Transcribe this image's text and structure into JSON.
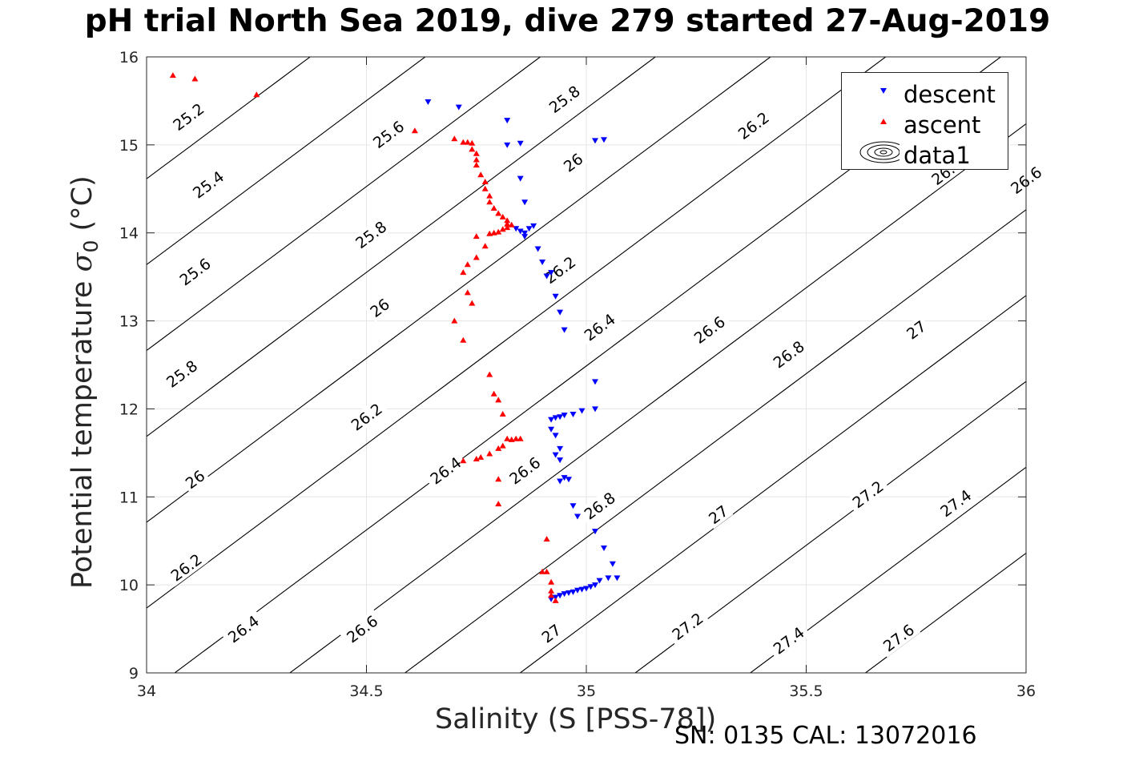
{
  "title": "pH trial North Sea 2019, dive 279 started 27-Aug-2019",
  "footer": "SN: 0135  CAL: 13072016",
  "colors": {
    "descent": "#0000ff",
    "ascent": "#ff0000",
    "contour": "#000000",
    "grid": "#e5e5e5"
  },
  "chart_data": {
    "type": "scatter",
    "xlabel": "Salinity (S [PSS-78])",
    "ylabel_main": "Potential temperature ",
    "ylabel_sub": "0",
    "ylabel_tail": " (°C)",
    "xlim": [
      34,
      36
    ],
    "ylim": [
      9,
      16
    ],
    "xticks": [
      "34",
      "34.5",
      "35",
      "35.5",
      "36"
    ],
    "yticks": [
      "9",
      "10",
      "11",
      "12",
      "13",
      "14",
      "15",
      "16"
    ],
    "grid": true,
    "legend_position": "top-right",
    "legend": [
      {
        "label": "descent",
        "marker": "triangle-down"
      },
      {
        "label": "ascent",
        "marker": "triangle-up"
      },
      {
        "label": "data1",
        "marker": "contour"
      }
    ],
    "contour_levels": [
      "25.2",
      "25.4",
      "25.6",
      "25.8",
      "26",
      "26.2",
      "26.4",
      "26.6",
      "26.8",
      "27",
      "27.2",
      "27.4",
      "27.6"
    ],
    "contour_labels": [
      {
        "text": "25.2",
        "x": 34.095,
        "y": 15.32
      },
      {
        "text": "25.6",
        "x": 34.55,
        "y": 15.12
      },
      {
        "text": "25.8",
        "x": 34.95,
        "y": 15.52
      },
      {
        "text": "25.4",
        "x": 34.14,
        "y": 14.55
      },
      {
        "text": "25.8",
        "x": 34.51,
        "y": 13.98
      },
      {
        "text": "26",
        "x": 34.97,
        "y": 14.8
      },
      {
        "text": "26.2",
        "x": 35.38,
        "y": 15.22
      },
      {
        "text": "26.4",
        "x": 35.82,
        "y": 14.7
      },
      {
        "text": "26.6",
        "x": 36.0,
        "y": 14.6
      },
      {
        "text": "26.8",
        "x": 36.14,
        "y": 14.33
      },
      {
        "text": "25.6",
        "x": 34.11,
        "y": 13.56
      },
      {
        "text": "26",
        "x": 34.53,
        "y": 13.15
      },
      {
        "text": "26.2",
        "x": 34.94,
        "y": 13.58
      },
      {
        "text": "26.4",
        "x": 35.03,
        "y": 12.93
      },
      {
        "text": "26.6",
        "x": 35.28,
        "y": 12.9
      },
      {
        "text": "26.8",
        "x": 35.46,
        "y": 12.62
      },
      {
        "text": "27",
        "x": 35.75,
        "y": 12.9
      },
      {
        "text": "25.8",
        "x": 34.08,
        "y": 12.4
      },
      {
        "text": "26.2",
        "x": 34.5,
        "y": 11.91
      },
      {
        "text": "26.4",
        "x": 34.68,
        "y": 11.3
      },
      {
        "text": "26.6",
        "x": 34.86,
        "y": 11.3
      },
      {
        "text": "26.8",
        "x": 35.03,
        "y": 10.9
      },
      {
        "text": "27.2",
        "x": 35.64,
        "y": 11.03
      },
      {
        "text": "27.4",
        "x": 35.84,
        "y": 10.93
      },
      {
        "text": "26",
        "x": 34.11,
        "y": 11.2
      },
      {
        "text": "26.2",
        "x": 34.09,
        "y": 10.2
      },
      {
        "text": "27",
        "x": 35.3,
        "y": 10.8
      },
      {
        "text": "26.4",
        "x": 34.22,
        "y": 9.5
      },
      {
        "text": "26.6",
        "x": 34.49,
        "y": 9.5
      },
      {
        "text": "27",
        "x": 34.92,
        "y": 9.45
      },
      {
        "text": "27.2",
        "x": 35.23,
        "y": 9.53
      },
      {
        "text": "27.4",
        "x": 35.46,
        "y": 9.37
      },
      {
        "text": "27.6",
        "x": 35.71,
        "y": 9.4
      }
    ],
    "series": [
      {
        "name": "descent",
        "marker": "triangle-down",
        "points": [
          [
            34.64,
            15.49
          ],
          [
            34.71,
            15.43
          ],
          [
            34.82,
            15.28
          ],
          [
            34.85,
            15.02
          ],
          [
            34.82,
            15.0
          ],
          [
            34.85,
            14.62
          ],
          [
            34.86,
            14.35
          ],
          [
            35.02,
            15.05
          ],
          [
            35.04,
            15.06
          ],
          [
            34.84,
            14.05
          ],
          [
            34.85,
            14.02
          ],
          [
            34.86,
            14.0
          ],
          [
            34.86,
            13.96
          ],
          [
            34.87,
            14.05
          ],
          [
            34.88,
            14.08
          ],
          [
            34.89,
            13.82
          ],
          [
            34.9,
            13.67
          ],
          [
            34.91,
            13.51
          ],
          [
            34.92,
            13.55
          ],
          [
            34.93,
            13.28
          ],
          [
            34.94,
            13.1
          ],
          [
            34.95,
            12.9
          ],
          [
            35.02,
            12.31
          ],
          [
            35.02,
            12.0
          ],
          [
            34.99,
            11.98
          ],
          [
            34.97,
            11.94
          ],
          [
            34.95,
            11.93
          ],
          [
            34.94,
            11.91
          ],
          [
            34.93,
            11.9
          ],
          [
            34.92,
            11.88
          ],
          [
            34.92,
            11.77
          ],
          [
            34.93,
            11.7
          ],
          [
            34.94,
            11.55
          ],
          [
            34.94,
            11.42
          ],
          [
            34.93,
            11.48
          ],
          [
            34.95,
            11.22
          ],
          [
            34.96,
            11.2
          ],
          [
            34.94,
            11.18
          ],
          [
            34.97,
            10.9
          ],
          [
            34.98,
            10.78
          ],
          [
            35.02,
            10.61
          ],
          [
            35.04,
            10.42
          ],
          [
            35.06,
            10.24
          ],
          [
            35.07,
            10.08
          ],
          [
            35.05,
            10.08
          ],
          [
            35.03,
            10.05
          ],
          [
            35.02,
            10.0
          ],
          [
            35.01,
            9.98
          ],
          [
            35.0,
            9.96
          ],
          [
            34.99,
            9.95
          ],
          [
            34.98,
            9.94
          ],
          [
            34.97,
            9.92
          ],
          [
            34.96,
            9.91
          ],
          [
            34.95,
            9.9
          ],
          [
            34.94,
            9.88
          ],
          [
            34.93,
            9.86
          ],
          [
            34.92,
            9.84
          ]
        ]
      },
      {
        "name": "ascent",
        "marker": "triangle-up",
        "points": [
          [
            34.06,
            15.79
          ],
          [
            34.11,
            15.75
          ],
          [
            34.25,
            15.57
          ],
          [
            34.61,
            15.16
          ],
          [
            34.7,
            15.07
          ],
          [
            34.72,
            15.03
          ],
          [
            34.73,
            15.03
          ],
          [
            34.74,
            15.02
          ],
          [
            34.74,
            14.95
          ],
          [
            34.75,
            14.9
          ],
          [
            34.75,
            14.83
          ],
          [
            34.75,
            14.77
          ],
          [
            34.76,
            14.66
          ],
          [
            34.77,
            14.58
          ],
          [
            34.77,
            14.5
          ],
          [
            34.78,
            14.42
          ],
          [
            34.78,
            14.35
          ],
          [
            34.79,
            14.28
          ],
          [
            34.8,
            14.22
          ],
          [
            34.81,
            14.18
          ],
          [
            34.82,
            14.14
          ],
          [
            34.82,
            14.1
          ],
          [
            34.83,
            14.09
          ],
          [
            34.82,
            14.06
          ],
          [
            34.81,
            14.04
          ],
          [
            34.8,
            14.01
          ],
          [
            34.79,
            14.0
          ],
          [
            34.78,
            13.99
          ],
          [
            34.75,
            13.96
          ],
          [
            34.77,
            13.85
          ],
          [
            34.75,
            13.72
          ],
          [
            34.73,
            13.64
          ],
          [
            34.72,
            13.55
          ],
          [
            34.73,
            13.32
          ],
          [
            34.74,
            13.2
          ],
          [
            34.7,
            13.0
          ],
          [
            34.72,
            12.78
          ],
          [
            34.78,
            12.39
          ],
          [
            34.79,
            12.17
          ],
          [
            34.8,
            12.1
          ],
          [
            34.81,
            11.94
          ],
          [
            34.82,
            11.66
          ],
          [
            34.83,
            11.65
          ],
          [
            34.84,
            11.66
          ],
          [
            34.85,
            11.66
          ],
          [
            34.81,
            11.58
          ],
          [
            34.8,
            11.55
          ],
          [
            34.78,
            11.49
          ],
          [
            34.76,
            11.45
          ],
          [
            34.75,
            11.43
          ],
          [
            34.72,
            11.41
          ],
          [
            34.8,
            11.2
          ],
          [
            34.8,
            10.92
          ],
          [
            34.91,
            10.52
          ],
          [
            34.9,
            10.15
          ],
          [
            34.91,
            10.15
          ],
          [
            34.92,
            10.03
          ],
          [
            34.92,
            9.93
          ],
          [
            34.92,
            9.88
          ],
          [
            34.93,
            9.82
          ]
        ]
      }
    ]
  }
}
